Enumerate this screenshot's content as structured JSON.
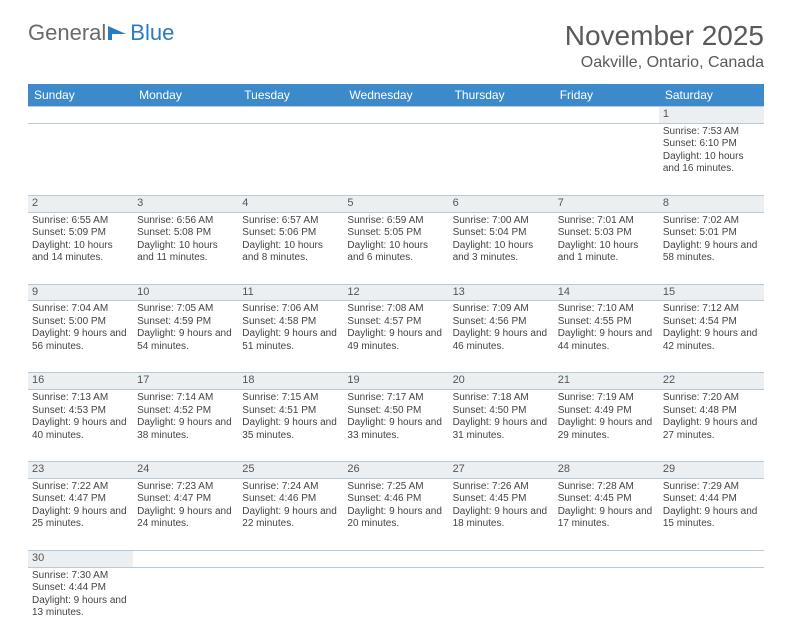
{
  "logo": {
    "part1": "General",
    "part2": "Blue"
  },
  "title": "November 2025",
  "location": "Oakville, Ontario, Canada",
  "header_bg": "#3c8ac9",
  "days_of_week": [
    "Sunday",
    "Monday",
    "Tuesday",
    "Wednesday",
    "Thursday",
    "Friday",
    "Saturday"
  ],
  "first_day_index": 6,
  "days": [
    {
      "n": 1,
      "sr": "7:53 AM",
      "ss": "6:10 PM",
      "dl": "10 hours and 16 minutes."
    },
    {
      "n": 2,
      "sr": "6:55 AM",
      "ss": "5:09 PM",
      "dl": "10 hours and 14 minutes."
    },
    {
      "n": 3,
      "sr": "6:56 AM",
      "ss": "5:08 PM",
      "dl": "10 hours and 11 minutes."
    },
    {
      "n": 4,
      "sr": "6:57 AM",
      "ss": "5:06 PM",
      "dl": "10 hours and 8 minutes."
    },
    {
      "n": 5,
      "sr": "6:59 AM",
      "ss": "5:05 PM",
      "dl": "10 hours and 6 minutes."
    },
    {
      "n": 6,
      "sr": "7:00 AM",
      "ss": "5:04 PM",
      "dl": "10 hours and 3 minutes."
    },
    {
      "n": 7,
      "sr": "7:01 AM",
      "ss": "5:03 PM",
      "dl": "10 hours and 1 minute."
    },
    {
      "n": 8,
      "sr": "7:02 AM",
      "ss": "5:01 PM",
      "dl": "9 hours and 58 minutes."
    },
    {
      "n": 9,
      "sr": "7:04 AM",
      "ss": "5:00 PM",
      "dl": "9 hours and 56 minutes."
    },
    {
      "n": 10,
      "sr": "7:05 AM",
      "ss": "4:59 PM",
      "dl": "9 hours and 54 minutes."
    },
    {
      "n": 11,
      "sr": "7:06 AM",
      "ss": "4:58 PM",
      "dl": "9 hours and 51 minutes."
    },
    {
      "n": 12,
      "sr": "7:08 AM",
      "ss": "4:57 PM",
      "dl": "9 hours and 49 minutes."
    },
    {
      "n": 13,
      "sr": "7:09 AM",
      "ss": "4:56 PM",
      "dl": "9 hours and 46 minutes."
    },
    {
      "n": 14,
      "sr": "7:10 AM",
      "ss": "4:55 PM",
      "dl": "9 hours and 44 minutes."
    },
    {
      "n": 15,
      "sr": "7:12 AM",
      "ss": "4:54 PM",
      "dl": "9 hours and 42 minutes."
    },
    {
      "n": 16,
      "sr": "7:13 AM",
      "ss": "4:53 PM",
      "dl": "9 hours and 40 minutes."
    },
    {
      "n": 17,
      "sr": "7:14 AM",
      "ss": "4:52 PM",
      "dl": "9 hours and 38 minutes."
    },
    {
      "n": 18,
      "sr": "7:15 AM",
      "ss": "4:51 PM",
      "dl": "9 hours and 35 minutes."
    },
    {
      "n": 19,
      "sr": "7:17 AM",
      "ss": "4:50 PM",
      "dl": "9 hours and 33 minutes."
    },
    {
      "n": 20,
      "sr": "7:18 AM",
      "ss": "4:50 PM",
      "dl": "9 hours and 31 minutes."
    },
    {
      "n": 21,
      "sr": "7:19 AM",
      "ss": "4:49 PM",
      "dl": "9 hours and 29 minutes."
    },
    {
      "n": 22,
      "sr": "7:20 AM",
      "ss": "4:48 PM",
      "dl": "9 hours and 27 minutes."
    },
    {
      "n": 23,
      "sr": "7:22 AM",
      "ss": "4:47 PM",
      "dl": "9 hours and 25 minutes."
    },
    {
      "n": 24,
      "sr": "7:23 AM",
      "ss": "4:47 PM",
      "dl": "9 hours and 24 minutes."
    },
    {
      "n": 25,
      "sr": "7:24 AM",
      "ss": "4:46 PM",
      "dl": "9 hours and 22 minutes."
    },
    {
      "n": 26,
      "sr": "7:25 AM",
      "ss": "4:46 PM",
      "dl": "9 hours and 20 minutes."
    },
    {
      "n": 27,
      "sr": "7:26 AM",
      "ss": "4:45 PM",
      "dl": "9 hours and 18 minutes."
    },
    {
      "n": 28,
      "sr": "7:28 AM",
      "ss": "4:45 PM",
      "dl": "9 hours and 17 minutes."
    },
    {
      "n": 29,
      "sr": "7:29 AM",
      "ss": "4:44 PM",
      "dl": "9 hours and 15 minutes."
    },
    {
      "n": 30,
      "sr": "7:30 AM",
      "ss": "4:44 PM",
      "dl": "9 hours and 13 minutes."
    }
  ],
  "labels": {
    "sunrise": "Sunrise: ",
    "sunset": "Sunset: ",
    "daylight": "Daylight: "
  }
}
